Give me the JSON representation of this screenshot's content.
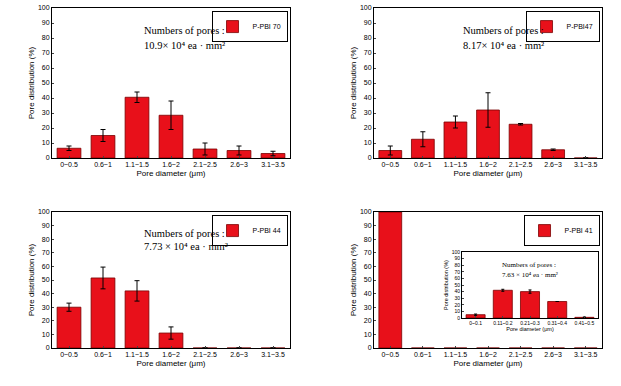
{
  "chart_data": [
    {
      "type": "bar",
      "xlabel": "Pore diameter (μm)",
      "ylabel": "Pore distribution (%)",
      "categories": [
        "0~0.5",
        "0.6~1",
        "1.1~1.5",
        "1.6~2",
        "2.1~2.5",
        "2.6~3",
        "3.1~3.5"
      ],
      "series": [
        {
          "name": "P-PBI 70",
          "color": "#e8101a",
          "values": [
            6.5,
            15,
            40.5,
            28.5,
            6,
            5,
            3
          ],
          "errors": [
            1.5,
            4,
            3.5,
            9.5,
            4,
            3,
            1.5
          ]
        }
      ],
      "annotations": [
        "Numbers of pores :",
        "10.9× 10⁴ ea · mm²"
      ],
      "ylim": [
        0,
        100
      ],
      "yticks": [
        0,
        10,
        20,
        30,
        40,
        50,
        60,
        70,
        80,
        90,
        100
      ],
      "legend": "upper right"
    },
    {
      "type": "bar",
      "xlabel": "Pore diameter (μm)",
      "ylabel": "Pore distribution (%)",
      "categories": [
        "0~0.5",
        "0.6~1",
        "1.1~1.5",
        "1.6~2",
        "2.1~2.5",
        "2.6~3",
        "3.1~3.5"
      ],
      "series": [
        {
          "name": "P-PBI47",
          "color": "#e8101a",
          "values": [
            5,
            12.5,
            24,
            32,
            22.5,
            5.5,
            0
          ],
          "errors": [
            3,
            5,
            4,
            11.5,
            0.5,
            0.5,
            0
          ]
        }
      ],
      "annotations": [
        "Numbers of pores :",
        "8.17× 10⁴ ea · mm²"
      ],
      "ylim": [
        0,
        100
      ],
      "yticks": [
        0,
        10,
        20,
        30,
        40,
        50,
        60,
        70,
        80,
        90,
        100
      ],
      "legend": "upper right"
    },
    {
      "type": "bar",
      "xlabel": "Pore diameter (μm)",
      "ylabel": "Pore distribution (%)",
      "categories": [
        "0~0.5",
        "0.6~1",
        "1.1~1.5",
        "1.6~2",
        "2.1~2.5",
        "2.6~3",
        "3.1~3.5"
      ],
      "series": [
        {
          "name": "P-PBI 44",
          "color": "#e8101a",
          "values": [
            30,
            51.5,
            42,
            11,
            0,
            0,
            0
          ],
          "errors": [
            3,
            8,
            7.5,
            4.5,
            0,
            0,
            0
          ]
        }
      ],
      "annotations": [
        "Numbers of pores :",
        "7.73 × 10⁴ ea · mm²"
      ],
      "ylim": [
        0,
        100
      ],
      "yticks": [
        0,
        10,
        20,
        30,
        40,
        50,
        60,
        70,
        80,
        90,
        100
      ],
      "legend": "upper right"
    },
    {
      "type": "bar",
      "xlabel": "Pore diameter (μm)",
      "ylabel": "Pore distribution (%)",
      "categories": [
        "0~0.5",
        "0.6~1",
        "1.1~1.5",
        "1.6~2",
        "2.1~2.5",
        "2.6~3",
        "3.1~3.5"
      ],
      "series": [
        {
          "name": "P-PBI 41",
          "color": "#e8101a",
          "values": [
            100,
            0,
            0,
            0,
            0,
            0,
            0
          ]
        }
      ],
      "ylim": [
        0,
        100
      ],
      "yticks": [
        0,
        10,
        20,
        30,
        40,
        50,
        60,
        70,
        80,
        90,
        100
      ],
      "legend": "upper right"
    },
    {
      "type": "bar",
      "xlabel": "Pore diameter (μm)",
      "ylabel": "Pore distribution (%)",
      "categories": [
        "0~0.1",
        "0.11~0.2",
        "0.21~0.3",
        "0.31~0.4",
        "0.41~0.5"
      ],
      "series": [
        {
          "color": "#e8101a",
          "values": [
            5,
            42,
            40,
            25,
            1
          ],
          "errors": [
            1,
            1.5,
            2.5,
            0,
            0.5
          ]
        }
      ],
      "annotations": [
        "Numbers of pores :",
        "7.63 × 10⁴ ea · mm²"
      ],
      "ylim": [
        0,
        100
      ],
      "yticks": [
        0,
        10,
        20,
        30,
        40,
        50,
        60,
        70,
        80,
        90,
        100
      ]
    }
  ]
}
